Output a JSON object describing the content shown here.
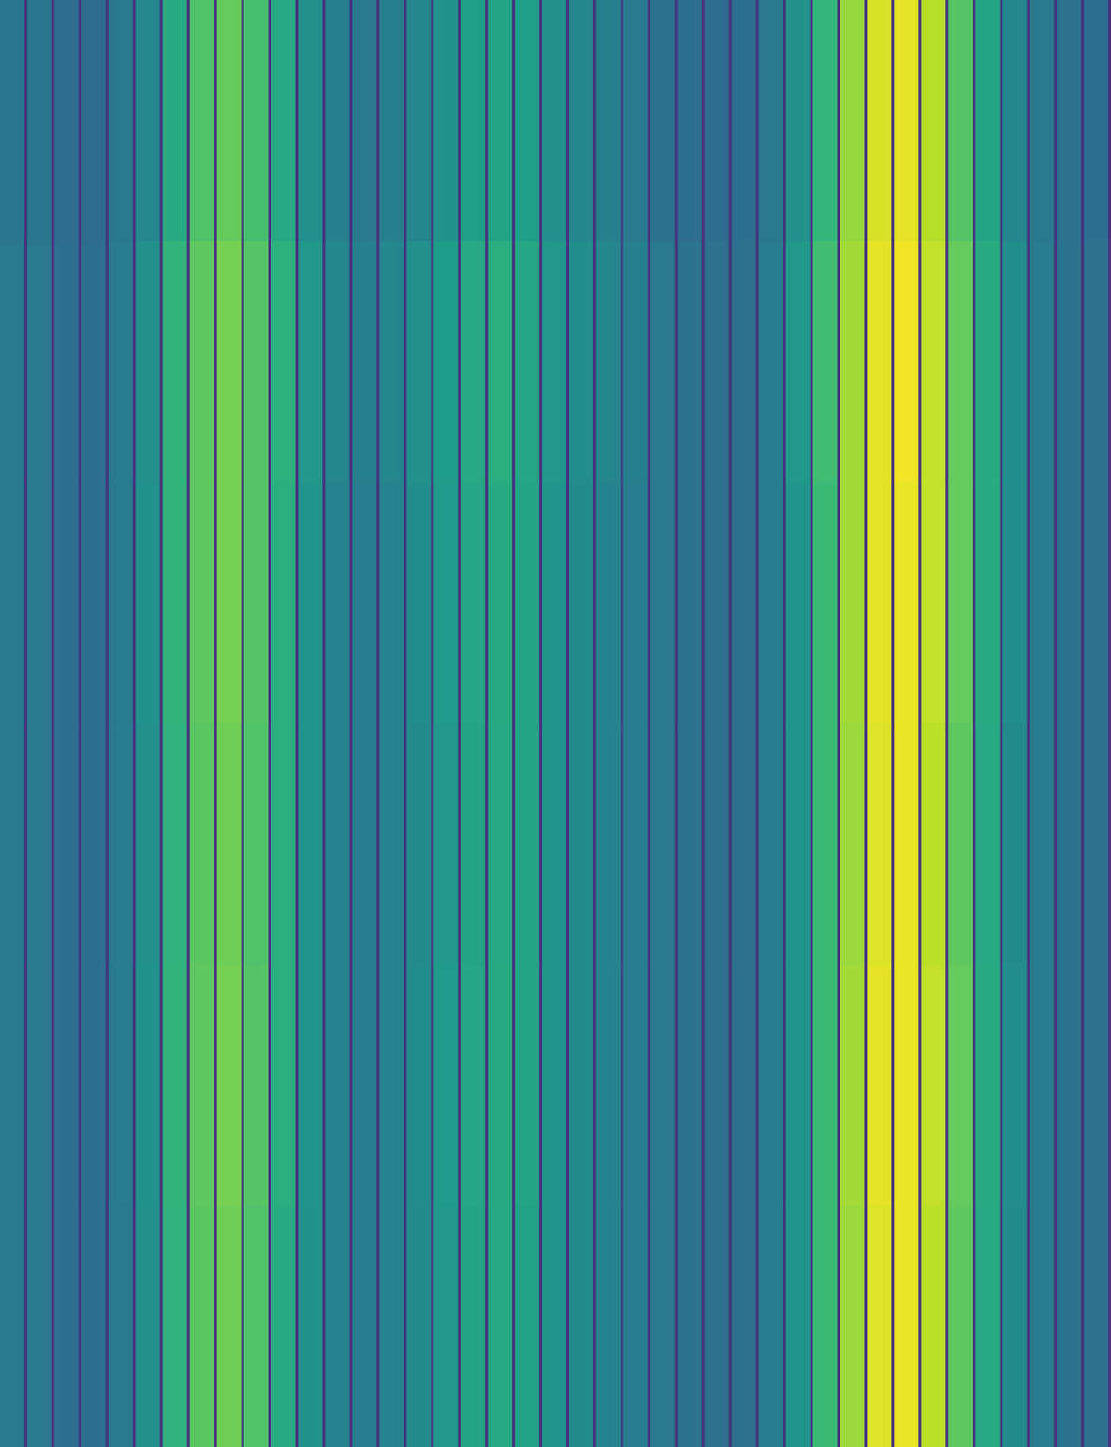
{
  "chart_data": {
    "type": "heatmap",
    "values": [
      [
        0.39,
        0.39,
        0.35,
        0.35,
        0.4,
        0.47,
        0.61,
        0.72,
        0.76,
        0.7,
        0.6,
        0.5,
        0.43,
        0.4,
        0.43,
        0.46,
        0.51,
        0.56,
        0.58,
        0.56,
        0.5,
        0.46,
        0.43,
        0.4,
        0.38,
        0.36,
        0.35,
        0.36,
        0.4,
        0.5,
        0.66,
        0.84,
        0.94,
        0.96,
        0.89,
        0.73,
        0.58,
        0.46,
        0.4,
        0.37,
        0.36
      ],
      [
        0.4,
        0.4,
        0.36,
        0.36,
        0.42,
        0.5,
        0.65,
        0.75,
        0.79,
        0.73,
        0.63,
        0.53,
        0.46,
        0.43,
        0.46,
        0.5,
        0.55,
        0.6,
        0.62,
        0.59,
        0.53,
        0.49,
        0.46,
        0.43,
        0.4,
        0.38,
        0.37,
        0.37,
        0.42,
        0.53,
        0.69,
        0.86,
        0.96,
        0.98,
        0.91,
        0.76,
        0.61,
        0.49,
        0.42,
        0.38,
        0.37
      ],
      [
        0.4,
        0.4,
        0.36,
        0.36,
        0.42,
        0.51,
        0.65,
        0.75,
        0.79,
        0.73,
        0.62,
        0.52,
        0.45,
        0.42,
        0.45,
        0.49,
        0.54,
        0.59,
        0.61,
        0.58,
        0.52,
        0.48,
        0.45,
        0.42,
        0.4,
        0.38,
        0.37,
        0.37,
        0.42,
        0.52,
        0.68,
        0.86,
        0.96,
        0.97,
        0.91,
        0.76,
        0.61,
        0.49,
        0.42,
        0.38,
        0.37
      ],
      [
        0.4,
        0.4,
        0.36,
        0.36,
        0.42,
        0.5,
        0.64,
        0.74,
        0.78,
        0.72,
        0.62,
        0.52,
        0.45,
        0.42,
        0.45,
        0.48,
        0.53,
        0.58,
        0.6,
        0.58,
        0.52,
        0.48,
        0.45,
        0.42,
        0.4,
        0.38,
        0.37,
        0.37,
        0.42,
        0.52,
        0.68,
        0.85,
        0.95,
        0.97,
        0.9,
        0.75,
        0.6,
        0.48,
        0.42,
        0.38,
        0.37
      ],
      [
        0.4,
        0.4,
        0.36,
        0.36,
        0.42,
        0.51,
        0.65,
        0.75,
        0.79,
        0.73,
        0.62,
        0.52,
        0.45,
        0.42,
        0.45,
        0.49,
        0.54,
        0.59,
        0.61,
        0.58,
        0.52,
        0.48,
        0.45,
        0.42,
        0.4,
        0.38,
        0.37,
        0.37,
        0.42,
        0.52,
        0.68,
        0.86,
        0.96,
        0.97,
        0.91,
        0.76,
        0.61,
        0.49,
        0.42,
        0.38,
        0.37
      ],
      [
        0.4,
        0.4,
        0.36,
        0.36,
        0.41,
        0.5,
        0.64,
        0.74,
        0.78,
        0.72,
        0.61,
        0.51,
        0.45,
        0.42,
        0.45,
        0.48,
        0.53,
        0.58,
        0.6,
        0.57,
        0.52,
        0.48,
        0.45,
        0.42,
        0.4,
        0.38,
        0.37,
        0.37,
        0.42,
        0.52,
        0.68,
        0.85,
        0.95,
        0.97,
        0.9,
        0.75,
        0.6,
        0.48,
        0.42,
        0.38,
        0.37
      ]
    ],
    "color_range": [
      0,
      1
    ],
    "tick_labels": false
  }
}
